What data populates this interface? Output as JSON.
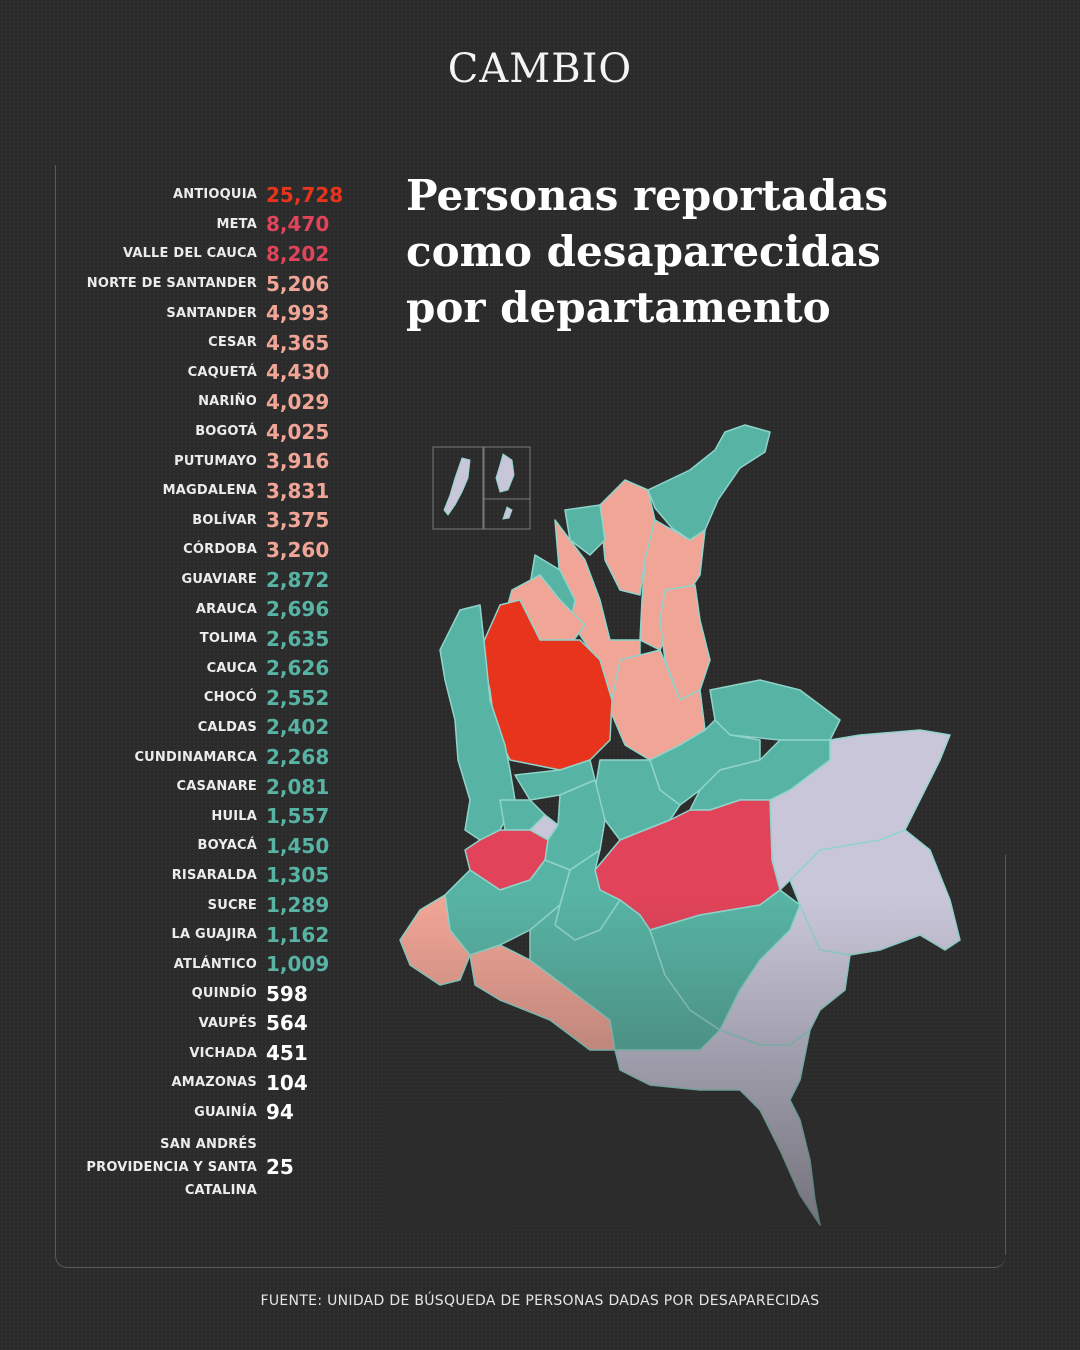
{
  "brand": "CAMBIO",
  "title_lines": [
    "Personas reportadas",
    "como desaparecidas",
    "por departamento"
  ],
  "source": "FUENTE: UNIDAD DE BÚSQUEDA DE PERSONAS DADAS POR DESAPARECIDAS",
  "colors": {
    "red": "#e8341c",
    "crimson": "#e0435a",
    "salmon": "#f1a596",
    "teal": "#57b3a3",
    "white": "#ffffff",
    "lavender": "#c9c6d9"
  },
  "departments": [
    {
      "name": "ANTIOQUIA",
      "value": "25,728",
      "color": "#e8341c"
    },
    {
      "name": "META",
      "value": "8,470",
      "color": "#e0435a"
    },
    {
      "name": "VALLE DEL CAUCA",
      "value": "8,202",
      "color": "#e0435a"
    },
    {
      "name": "NORTE DE SANTANDER",
      "value": "5,206",
      "color": "#f1a596"
    },
    {
      "name": "SANTANDER",
      "value": "4,993",
      "color": "#f1a596"
    },
    {
      "name": "CESAR",
      "value": "4,365",
      "color": "#f1a596"
    },
    {
      "name": "CAQUETÁ",
      "value": "4,430",
      "color": "#f1a596"
    },
    {
      "name": "NARIÑO",
      "value": "4,029",
      "color": "#f1a596"
    },
    {
      "name": "BOGOTÁ",
      "value": "4,025",
      "color": "#f1a596"
    },
    {
      "name": "PUTUMAYO",
      "value": "3,916",
      "color": "#f1a596"
    },
    {
      "name": "MAGDALENA",
      "value": "3,831",
      "color": "#f1a596"
    },
    {
      "name": "BOLÍVAR",
      "value": "3,375",
      "color": "#f1a596"
    },
    {
      "name": "CÓRDOBA",
      "value": "3,260",
      "color": "#f1a596"
    },
    {
      "name": "GUAVIARE",
      "value": "2,872",
      "color": "#57b3a3"
    },
    {
      "name": "ARAUCA",
      "value": "2,696",
      "color": "#57b3a3"
    },
    {
      "name": "TOLIMA",
      "value": "2,635",
      "color": "#57b3a3"
    },
    {
      "name": "CAUCA",
      "value": "2,626",
      "color": "#57b3a3"
    },
    {
      "name": "CHOCÓ",
      "value": "2,552",
      "color": "#57b3a3"
    },
    {
      "name": "CALDAS",
      "value": "2,402",
      "color": "#57b3a3"
    },
    {
      "name": "CUNDINAMARCA",
      "value": "2,268",
      "color": "#57b3a3"
    },
    {
      "name": "CASANARE",
      "value": "2,081",
      "color": "#57b3a3"
    },
    {
      "name": "HUILA",
      "value": "1,557",
      "color": "#57b3a3"
    },
    {
      "name": "BOYACÁ",
      "value": "1,450",
      "color": "#57b3a3"
    },
    {
      "name": "RISARALDA",
      "value": "1,305",
      "color": "#57b3a3"
    },
    {
      "name": "SUCRE",
      "value": "1,289",
      "color": "#57b3a3"
    },
    {
      "name": "LA GUAJIRA",
      "value": "1,162",
      "color": "#57b3a3"
    },
    {
      "name": "ATLÁNTICO",
      "value": "1,009",
      "color": "#57b3a3"
    },
    {
      "name": "QUINDÍO",
      "value": "598",
      "color": "#ffffff"
    },
    {
      "name": "VAUPÉS",
      "value": "564",
      "color": "#ffffff"
    },
    {
      "name": "VICHADA",
      "value": "451",
      "color": "#ffffff"
    },
    {
      "name": "AMAZONAS",
      "value": "104",
      "color": "#ffffff"
    },
    {
      "name": "GUAINÍA",
      "value": "94",
      "color": "#ffffff"
    },
    {
      "name": "SAN ANDRÉS\nPROVIDENCIA Y SANTA\nCATALINA",
      "value": "25",
      "color": "#ffffff"
    }
  ]
}
